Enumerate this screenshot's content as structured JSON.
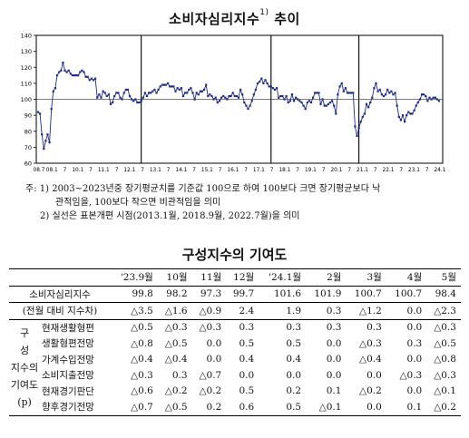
{
  "chart_title": "소비자심리지수",
  "chart_title_sup": "1)",
  "chart_title_suffix": " 추이",
  "chart_data": {
    "type": "line",
    "title": "소비자심리지수 추이",
    "ylim": [
      60,
      140
    ],
    "yticks": [
      60,
      70,
      80,
      90,
      100,
      110,
      120,
      130,
      140
    ],
    "xticks": [
      "08.7",
      "08.1",
      "7",
      "10.1",
      "7",
      "11.1",
      "7",
      "12.1",
      "7",
      "13.1",
      "7",
      "14.1",
      "7",
      "15.1",
      "7",
      "16.1",
      "7",
      "17.1",
      "7",
      "18.1",
      "7",
      "19.1",
      "7",
      "20.1",
      "7",
      "21.1",
      "7",
      "22.1",
      "7",
      "23.1",
      "7",
      "24.1"
    ],
    "reference_line": 100,
    "revision_points": [
      "2013.1",
      "2018.9",
      "2022.7"
    ],
    "series": [
      {
        "start": "2008.7",
        "values": [
          92,
          91,
          78,
          69,
          74,
          78,
          73,
          94,
          105,
          107,
          115,
          117,
          118,
          123,
          118,
          117,
          118,
          116,
          115,
          115,
          115,
          115,
          117,
          118,
          117,
          114,
          114,
          112,
          113,
          112,
          113,
          101,
          103,
          101,
          105,
          104,
          102,
          103,
          97,
          98,
          102,
          104,
          104,
          101,
          100,
          104,
          106,
          106,
          102,
          100,
          99,
          100,
          98,
          98,
          99,
          101,
          104,
          102,
          104,
          104,
          105,
          106,
          104,
          106,
          108,
          109,
          109,
          109,
          110,
          108,
          108,
          108,
          105,
          107,
          106,
          107,
          102,
          104,
          104,
          106,
          107,
          104,
          100,
          104,
          103,
          105,
          105,
          106,
          109,
          102,
          103,
          102,
          100,
          101,
          98,
          99,
          101,
          102,
          101,
          100,
          102,
          102,
          104,
          102,
          102,
          101,
          106,
          103,
          98,
          96,
          94,
          96,
          99,
          103,
          106,
          110,
          111,
          113,
          110,
          112,
          110,
          108,
          108,
          107,
          106,
          107,
          101,
          102,
          102,
          100,
          102,
          98,
          99,
          103,
          99,
          101,
          100,
          99,
          98,
          96,
          94,
          98,
          99,
          98,
          101,
          104,
          104,
          104,
          97,
          100,
          96,
          96,
          97,
          98,
          99,
          96,
          91,
          103,
          108,
          110,
          105,
          107,
          104,
          104,
          104,
          104,
          83,
          77,
          82,
          86,
          89,
          91,
          97,
          95,
          98,
          101,
          107,
          110,
          105,
          106,
          103,
          102,
          103,
          106,
          104,
          105,
          103,
          104,
          96,
          89,
          87,
          90,
          86,
          90,
          92,
          91,
          91,
          93,
          96,
          98,
          100,
          103,
          103,
          102,
          99,
          101,
          100,
          101,
          101,
          100,
          99
        ]
      }
    ]
  },
  "notes": {
    "n1_prefix": "주: 1)",
    "n1_line1": "2003~2023년중 장기평균치를 기준값 100으로 하여 100보다 크면 장기평균보다 낙",
    "n1_line2": "관적임을, 100보다 작으면 비관적임을 의미",
    "n2": "2) 실선은 표본개편 시점(2013.1월, 2018.9월, 2022.7월)을 의미"
  },
  "table": {
    "title": "구성지수의 기여도",
    "headers": [
      "'23.9월",
      "10월",
      "11월",
      "12월",
      "'24.1월",
      "2월",
      "3월",
      "4월",
      "5월"
    ],
    "csi": {
      "label": "소비자심리지수",
      "values": [
        "99.8",
        "98.2",
        "97.3",
        "99.7",
        "101.6",
        "101.9",
        "100.7",
        "100.7",
        "98.4"
      ]
    },
    "mom": {
      "label": "(전월 대비 지수차)",
      "values": [
        "△3.5",
        "△1.6",
        "△0.9",
        "2.4",
        "1.9",
        "0.3",
        "△1.2",
        "0.0",
        "△2.3"
      ]
    },
    "group_label": [
      "구",
      "성",
      "지수의",
      "기여도",
      "(p)"
    ],
    "components": [
      {
        "name": "현재생활형편",
        "values": [
          "△0.5",
          "△0.3",
          "△0.3",
          "0.3",
          "0.3",
          "0.3",
          "0.3",
          "0.0",
          "△0.3"
        ]
      },
      {
        "name": "생활형편전망",
        "values": [
          "△0.8",
          "△0.5",
          "0.0",
          "0.5",
          "0.5",
          "0.0",
          "△0.3",
          "0.3",
          "△0.5"
        ]
      },
      {
        "name": "가계수입전망",
        "values": [
          "△0.4",
          "△0.4",
          "0.0",
          "0.4",
          "0.4",
          "0.0",
          "△0.4",
          "0.0",
          "△0.8"
        ]
      },
      {
        "name": "소비지출전망",
        "values": [
          "△0.3",
          "0.3",
          "△0.7",
          "0.0",
          "0.0",
          "0.0",
          "0.0",
          "△0.3",
          "△0.3"
        ]
      },
      {
        "name": "현재경기판단",
        "values": [
          "△0.6",
          "△0.2",
          "△0.2",
          "0.5",
          "0.2",
          "0.1",
          "△0.2",
          "0.0",
          "△0.1"
        ]
      },
      {
        "name": "향후경기전망",
        "values": [
          "△0.7",
          "△0.5",
          "0.2",
          "0.6",
          "0.5",
          "△0.1",
          "0.0",
          "0.1",
          "△0.2"
        ]
      }
    ]
  }
}
